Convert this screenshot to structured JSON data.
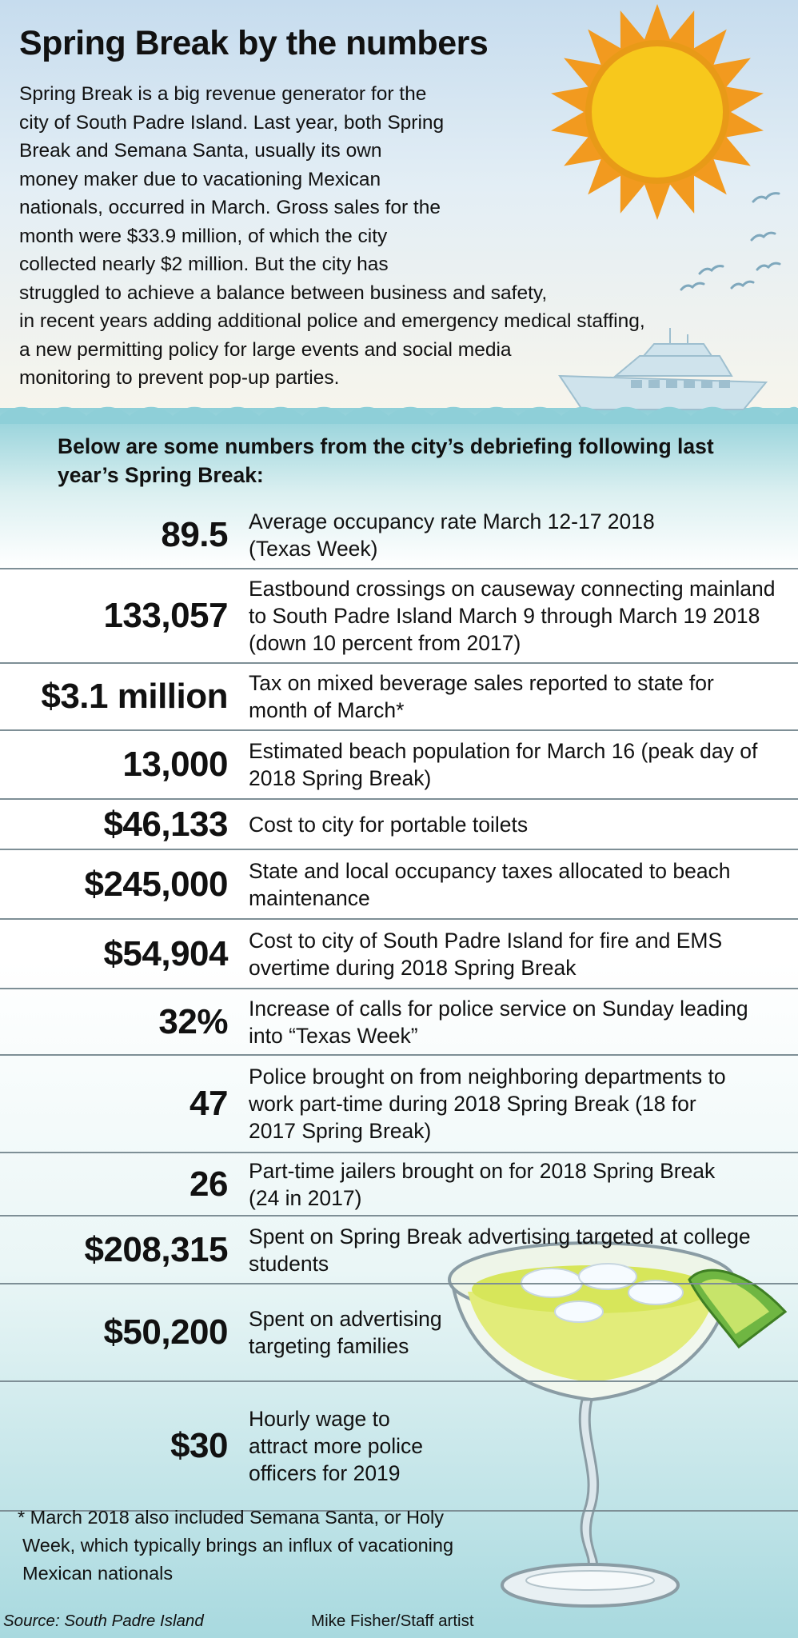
{
  "title": "Spring Break by the numbers",
  "intro": {
    "lines": [
      "Spring Break is a big revenue generator for the",
      "city of South Padre Island. Last year, both Spring",
      "Break and Semana Santa, usually its own",
      "money maker due to vacationing Mexican",
      "nationals, occurred in March. Gross sales for the",
      "month were $33.9 million, of which the city",
      "collected nearly $2 million. But the city has",
      "struggled to achieve a balance between business and safety,",
      "in recent years adding additional police and emergency medical staffing,",
      "a new permitting policy for large events and social media",
      "monitoring to prevent pop-up parties."
    ]
  },
  "subhead": "Below are some numbers from the city’s debriefing following last year’s Spring Break:",
  "stats": [
    {
      "value": "89.5",
      "description": "Average occupancy rate March 12-17 2018 (Texas Week)"
    },
    {
      "value": "133,057",
      "description": "Eastbound crossings on causeway connecting mainland to South Padre Island March 9 through March 19 2018 (down 10 percent from 2017)"
    },
    {
      "value": "$3.1 million",
      "description": "Tax on mixed beverage sales reported to state for month of March*"
    },
    {
      "value": "13,000",
      "description": "Estimated beach population for March 16 (peak day of 2018 Spring Break)"
    },
    {
      "value": "$46,133",
      "description": "Cost to city for portable toilets"
    },
    {
      "value": "$245,000",
      "description": "State and local occupancy taxes allocated to beach maintenance"
    },
    {
      "value": "$54,904",
      "description": "Cost to city of South Padre Island for fire and EMS overtime during 2018 Spring Break"
    },
    {
      "value": "32%",
      "description": "Increase of calls for police service on Sunday leading into “Texas Week”"
    },
    {
      "value": "47",
      "description": "Police brought on from neighboring departments to work part-time during 2018 Spring Break (18 for 2017 Spring Break)"
    },
    {
      "value": "26",
      "description": "Part-time jailers brought on for 2018 Spring Break (24 in 2017)"
    },
    {
      "value": "$208,315",
      "description": "Spent on Spring Break advertising targeted at college students"
    },
    {
      "value": "$50,200",
      "description": "Spent on advertising targeting families"
    },
    {
      "value": "$30",
      "description": "Hourly wage to attract more police officers for 2019"
    }
  ],
  "footnote": {
    "lines": [
      "* March 2018 also included Semana Santa, or Holy",
      "Week, which typically brings an influx of vacationing",
      "Mexican nationals"
    ]
  },
  "source": "Source: South Padre Island",
  "credit": "Mike Fisher/Staff artist",
  "colors": {
    "sky": "#c6dcee",
    "sea": "#8ecfd8",
    "sun": "#f7c81c",
    "rays": "#f29a1f",
    "divider": "#7e8f96",
    "text": "#111111"
  }
}
